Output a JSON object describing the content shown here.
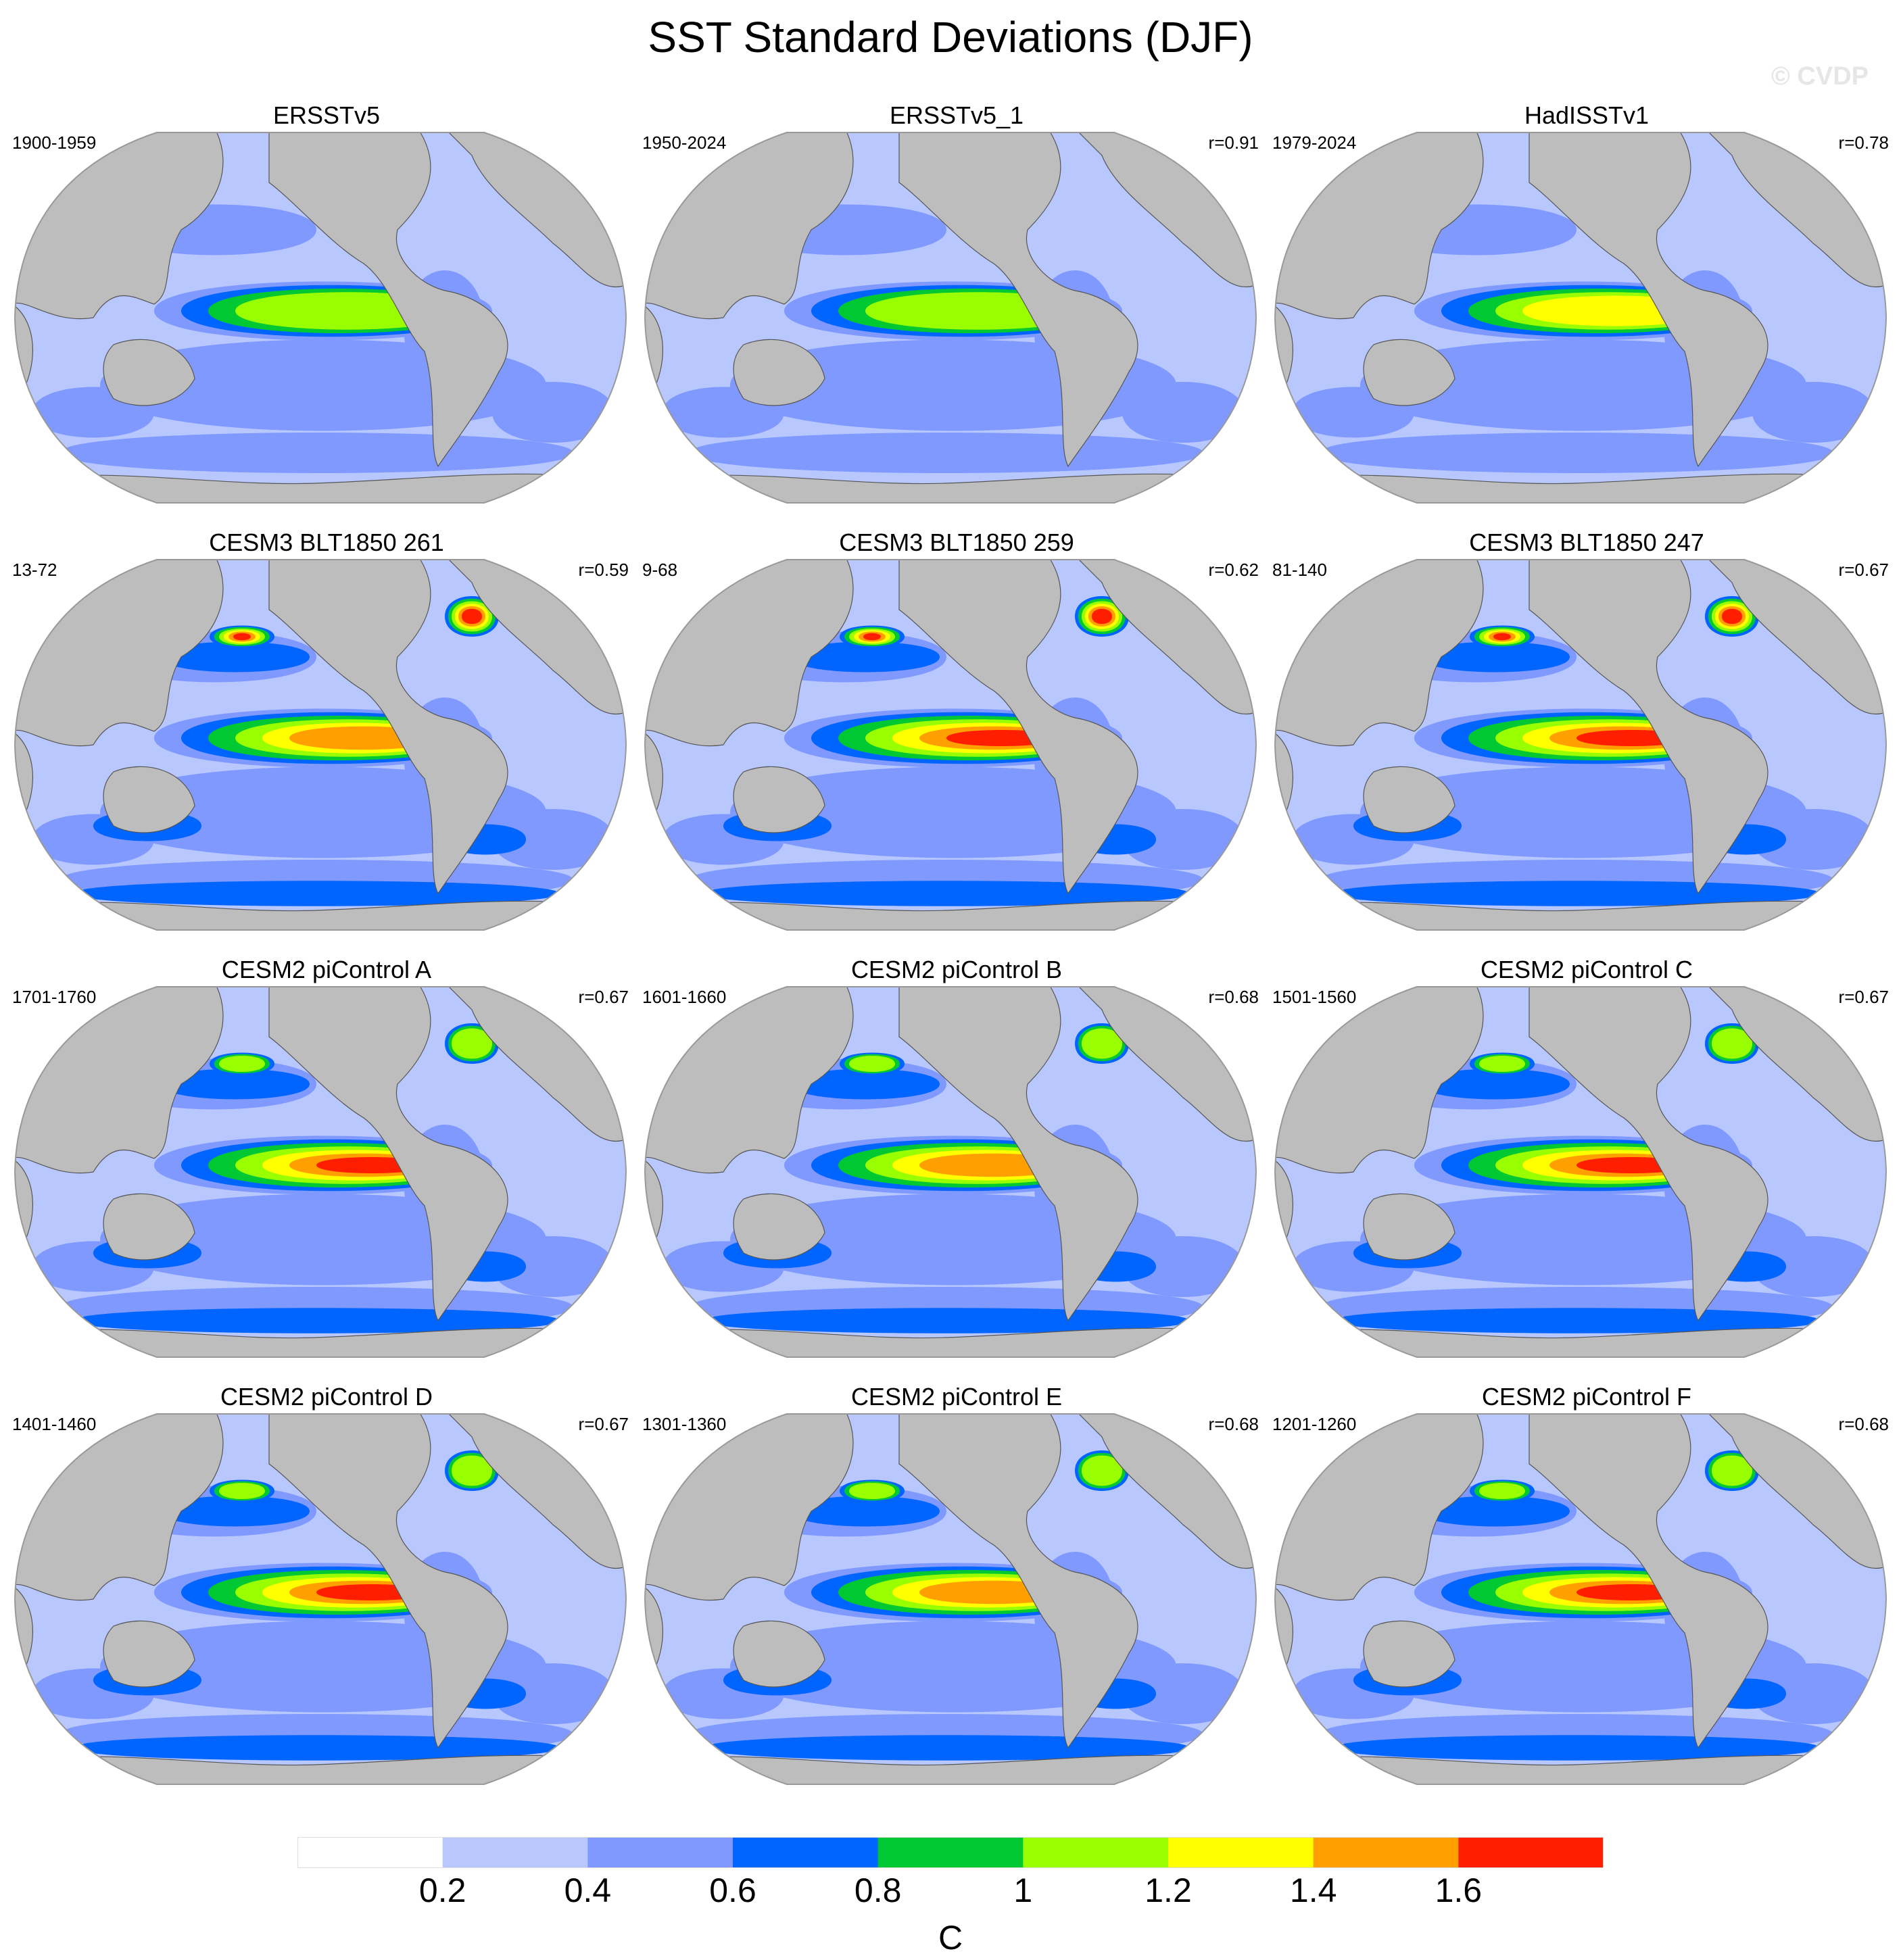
{
  "chart_data": {
    "type": "heatmap",
    "title": "SST Standard Deviations (DJF)",
    "watermark": "© CVDP",
    "panels": [
      {
        "title": "ERSSTv5",
        "period": "1900-1959",
        "r": ""
      },
      {
        "title": "ERSSTv5_1",
        "period": "1950-2024",
        "r": "r=0.91"
      },
      {
        "title": "HadISSTv1",
        "period": "1979-2024",
        "r": "r=0.78"
      },
      {
        "title": "CESM3 BLT1850 261",
        "period": "13-72",
        "r": "r=0.59"
      },
      {
        "title": "CESM3 BLT1850 259",
        "period": "9-68",
        "r": "r=0.62"
      },
      {
        "title": "CESM3 BLT1850 247",
        "period": "81-140",
        "r": "r=0.67"
      },
      {
        "title": "CESM2 piControl A",
        "period": "1701-1760",
        "r": "r=0.67"
      },
      {
        "title": "CESM2 piControl B",
        "period": "1601-1660",
        "r": "r=0.68"
      },
      {
        "title": "CESM2 piControl C",
        "period": "1501-1560",
        "r": "r=0.67"
      },
      {
        "title": "CESM2 piControl D",
        "period": "1401-1460",
        "r": "r=0.67"
      },
      {
        "title": "CESM2 piControl E",
        "period": "1301-1360",
        "r": "r=0.68"
      },
      {
        "title": "CESM2 piControl F",
        "period": "1201-1260",
        "r": "r=0.68"
      }
    ],
    "colorbar": {
      "ticks": [
        "0.2",
        "0.4",
        "0.6",
        "0.8",
        "1",
        "1.2",
        "1.4",
        "1.6"
      ],
      "colors": [
        "#ffffff",
        "#b8c8ff",
        "#8099ff",
        "#0064ff",
        "#00c832",
        "#99ff00",
        "#ffff00",
        "#ffa000",
        "#ff1e00"
      ],
      "unit": "C"
    },
    "land_color": "#bdbdbd",
    "projection": "Robinson, Pacific-centered"
  }
}
